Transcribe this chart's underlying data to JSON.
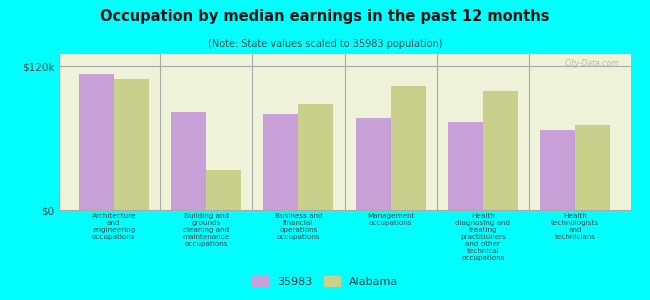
{
  "title": "Occupation by median earnings in the past 12 months",
  "subtitle": "(Note: State values scaled to 35983 population)",
  "categories": [
    "Architecture\nand\nengineering\noccupations",
    "Building and\ngrounds\ncleaning and\nmaintenance\noccupations",
    "Business and\nfinancial\noperations\noccupations",
    "Management\noccupations",
    "Health\ndiagnosing and\ntreating\npractitioners\nand other\ntechnical\noccupations",
    "Health\ntechnologists\nand\ntechnicians"
  ],
  "values_35983": [
    113000,
    82000,
    80000,
    77000,
    73000,
    67000
  ],
  "values_alabama": [
    109000,
    33000,
    88000,
    103000,
    99000,
    71000
  ],
  "color_35983": "#c8a0d8",
  "color_alabama": "#c8d08c",
  "ylim": [
    0,
    130000
  ],
  "yticks": [
    0,
    120000
  ],
  "ytick_labels": [
    "$0",
    "$120k"
  ],
  "legend_35983": "35983",
  "legend_alabama": "Alabama",
  "background_color": "#00ffff",
  "plot_bg_color": "#eef2d8",
  "watermark": "City-Data.com"
}
